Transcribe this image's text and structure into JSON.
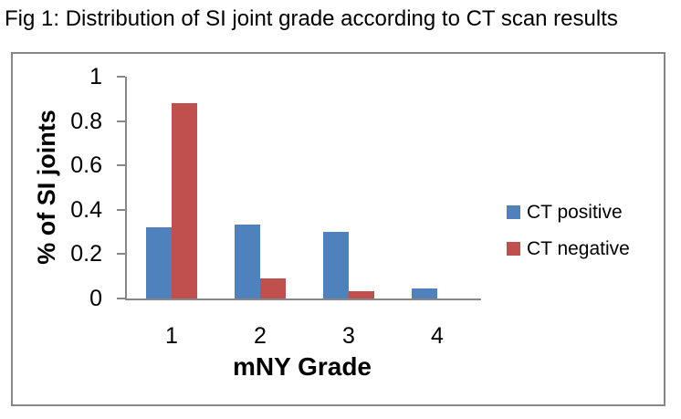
{
  "figure": {
    "title": "Fig 1: Distribution of SI joint grade according to CT scan results"
  },
  "chart_data": {
    "type": "bar",
    "title": "Fig 1: Distribution of SI joint grade according to CT scan results",
    "categories": [
      "1",
      "2",
      "3",
      "4"
    ],
    "series": [
      {
        "name": "CT positive",
        "color": "#4F81BD",
        "values": [
          0.32,
          0.335,
          0.3,
          0.045
        ]
      },
      {
        "name": "CT negative",
        "color": "#C0504D",
        "values": [
          0.88,
          0.09,
          0.033,
          0
        ]
      }
    ],
    "xlabel": "mNY Grade",
    "ylabel": "% of SI joints",
    "ylim": [
      0,
      1
    ],
    "yticks": [
      {
        "value": 0,
        "label": "0"
      },
      {
        "value": 0.2,
        "label": "0.2"
      },
      {
        "value": 0.4,
        "label": "0.4"
      },
      {
        "value": 0.6,
        "label": "0.6"
      },
      {
        "value": 0.8,
        "label": "0.8"
      },
      {
        "value": 1,
        "label": "1"
      }
    ],
    "grid": false,
    "legend_position": "right",
    "axis_color": "#878787"
  }
}
